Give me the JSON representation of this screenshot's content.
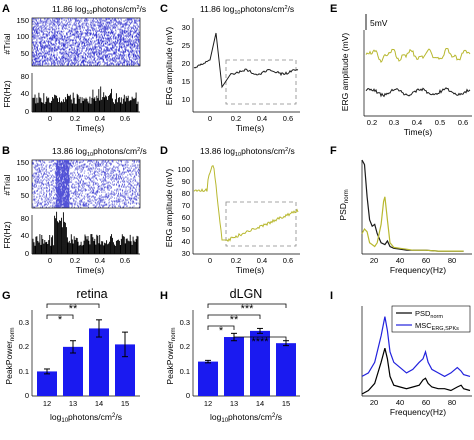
{
  "panels": {
    "A": {
      "label": "A",
      "title_main": "11.86 log",
      "title_sub": "10",
      "title_tail": "photons/cm",
      "title_sup": "2",
      "title_end": "/s",
      "ylabel_top": "#Trial",
      "ylabel_bottom": "FR(Hz)",
      "xlabel": "Time(s)",
      "yticks_top": [
        "150",
        "100",
        "50"
      ],
      "yticks_bottom": [
        "80",
        "40",
        "0"
      ],
      "xticks": [
        "0",
        "0.2",
        "0.4",
        "0.6"
      ]
    },
    "B": {
      "label": "B",
      "title_main": "13.86 log",
      "title_sub": "10",
      "title_tail": "photons/cm",
      "title_sup": "2",
      "title_end": "/s",
      "ylabel_top": "#Trial",
      "ylabel_bottom": "FR(Hz)",
      "xlabel": "Time(s)",
      "yticks_top": [
        "150",
        "100",
        "50"
      ],
      "yticks_bottom": [
        "80",
        "40",
        "0"
      ],
      "xticks": [
        "0",
        "0.2",
        "0.4",
        "0.6"
      ]
    },
    "C": {
      "label": "C",
      "title_main": "11.86 log",
      "title_sub": "10",
      "title_tail": "photons/cm",
      "title_sup": "2",
      "title_end": "/s",
      "ylabel": "ERG amplitude (mV)",
      "xlabel": "Time(s)",
      "yticks": [
        "30",
        "25",
        "20",
        "15",
        "10"
      ],
      "xticks": [
        "0",
        "0.2",
        "0.4",
        "0.6"
      ]
    },
    "D": {
      "label": "D",
      "title_main": "13.86 log",
      "title_sub": "10",
      "title_tail": "photons/cm",
      "title_sup": "2",
      "title_end": "/s",
      "ylabel": "ERG amplitude (mV)",
      "xlabel": "Time(s)",
      "yticks": [
        "100",
        "90",
        "80",
        "70",
        "60",
        "50",
        "40",
        "30"
      ],
      "xticks": [
        "0",
        "0.2",
        "0.4",
        "0.6"
      ]
    },
    "E": {
      "label": "E",
      "scalebar": "5mV",
      "ylabel": "ERG amplitude (mV)",
      "xlabel": "Time(s)",
      "xticks": [
        "0.2",
        "0.3",
        "0.4",
        "0.5",
        "0.6"
      ]
    },
    "F": {
      "label": "F",
      "ylabel_main": "PSD",
      "ylabel_sub": "norm",
      "xlabel": "Frequency(Hz)",
      "xticks": [
        "20",
        "40",
        "60",
        "80"
      ]
    },
    "G": {
      "label": "G",
      "title": "retina",
      "ylabel_main": "PeakPower",
      "ylabel_sub": "norm",
      "xlabel_main": "log",
      "xlabel_sub": "10",
      "xlabel_tail": "photons/cm",
      "xlabel_sup": "2",
      "xlabel_end": "/s",
      "yticks": [
        "0.3",
        "0.2",
        "0.1",
        "0"
      ],
      "sig": [
        "**",
        "*"
      ]
    },
    "H": {
      "label": "H",
      "title": "dLGN",
      "ylabel_main": "PeakPower",
      "ylabel_sub": "norm",
      "xlabel_main": "log",
      "xlabel_sub": "10",
      "xlabel_tail": "photons/cm",
      "xlabel_sup": "2",
      "xlabel_end": "/s",
      "yticks": [
        "0.3",
        "0.2",
        "0.1",
        "0"
      ],
      "sig": [
        "***",
        "**",
        "*",
        "****"
      ]
    },
    "I": {
      "label": "I",
      "xlabel": "Frequency(Hz)",
      "xticks": [
        "20",
        "40",
        "60",
        "80"
      ],
      "legend": [
        {
          "main": "PSD",
          "sub": "norm",
          "color": "#000000"
        },
        {
          "main": "MSC",
          "sub": "ERG,SPKs",
          "color": "#2222dd"
        }
      ]
    }
  },
  "colors": {
    "raster": "#3a3ad0",
    "bar": "#1a1af0",
    "olive": "#b8b830",
    "dark": "#1a1a1a",
    "dashed": "#888888"
  },
  "chart_data": [
    {
      "type": "bar",
      "panel": "G",
      "title": "retina",
      "categories": [
        "12",
        "13",
        "14",
        "15"
      ],
      "values": [
        0.1,
        0.2,
        0.275,
        0.21
      ],
      "errors": [
        0.01,
        0.025,
        0.035,
        0.05
      ],
      "ylim": [
        0,
        0.35
      ],
      "significance": [
        {
          "from": "12",
          "to": "14",
          "label": "**"
        },
        {
          "from": "12",
          "to": "13",
          "label": "*"
        }
      ]
    },
    {
      "type": "bar",
      "panel": "H",
      "title": "dLGN",
      "categories": [
        "12",
        "13",
        "14",
        "15"
      ],
      "values": [
        0.14,
        0.24,
        0.265,
        0.215
      ],
      "errors": [
        0.005,
        0.015,
        0.01,
        0.01
      ],
      "ylim": [
        0,
        0.35
      ],
      "significance": [
        {
          "from": "12",
          "to": "15",
          "label": "***"
        },
        {
          "from": "12",
          "to": "14",
          "label": "**"
        },
        {
          "from": "12",
          "to": "13",
          "label": "*"
        },
        {
          "from": "13",
          "to": "15",
          "label": "****"
        }
      ]
    },
    {
      "type": "line",
      "panel": "I",
      "xlim": [
        10,
        95
      ],
      "series": [
        {
          "name": "PSD norm",
          "color": "#000000",
          "x": [
            10,
            15,
            20,
            25,
            28,
            30,
            32,
            35,
            40,
            45,
            50,
            55,
            58,
            60,
            62,
            65,
            70,
            75,
            80,
            85,
            88,
            90,
            95
          ],
          "y": [
            0.0,
            0.02,
            0.06,
            0.18,
            0.26,
            0.2,
            0.1,
            0.05,
            0.04,
            0.03,
            0.04,
            0.05,
            0.08,
            0.09,
            0.06,
            0.04,
            0.03,
            0.03,
            0.02,
            0.04,
            0.05,
            0.03,
            0.02
          ]
        },
        {
          "name": "MSC ERG,SPKs",
          "color": "#2222dd",
          "x": [
            10,
            15,
            20,
            25,
            28,
            30,
            32,
            35,
            40,
            45,
            50,
            55,
            58,
            60,
            62,
            65,
            70,
            75,
            80,
            85,
            88,
            90,
            95
          ],
          "y": [
            0.1,
            0.12,
            0.18,
            0.33,
            0.44,
            0.36,
            0.24,
            0.18,
            0.15,
            0.12,
            0.14,
            0.18,
            0.2,
            0.24,
            0.18,
            0.14,
            0.12,
            0.1,
            0.12,
            0.15,
            0.13,
            0.11,
            0.1
          ]
        }
      ]
    },
    {
      "type": "line",
      "panel": "F",
      "xlim": [
        10,
        95
      ],
      "series": [
        {
          "color": "#1a1a1a",
          "x": [
            10,
            12,
            14,
            16,
            18,
            20,
            22,
            25,
            28,
            30,
            32,
            35,
            40,
            45,
            50,
            60,
            70,
            80,
            90
          ],
          "y": [
            1.0,
            0.95,
            0.6,
            0.35,
            0.28,
            0.3,
            0.2,
            0.1,
            0.08,
            0.12,
            0.06,
            0.04,
            0.03,
            0.02,
            0.02,
            0.02,
            0.01,
            0.01,
            0.01
          ]
        },
        {
          "color": "#b8b830",
          "x": [
            10,
            12,
            14,
            16,
            18,
            20,
            22,
            25,
            27,
            28,
            30,
            32,
            35,
            40,
            45,
            50,
            60,
            70,
            80,
            90
          ],
          "y": [
            0.2,
            0.25,
            0.22,
            0.1,
            0.08,
            0.06,
            0.1,
            0.3,
            0.55,
            0.6,
            0.35,
            0.1,
            0.05,
            0.04,
            0.03,
            0.02,
            0.02,
            0.01,
            0.01,
            0.01
          ]
        }
      ]
    }
  ]
}
